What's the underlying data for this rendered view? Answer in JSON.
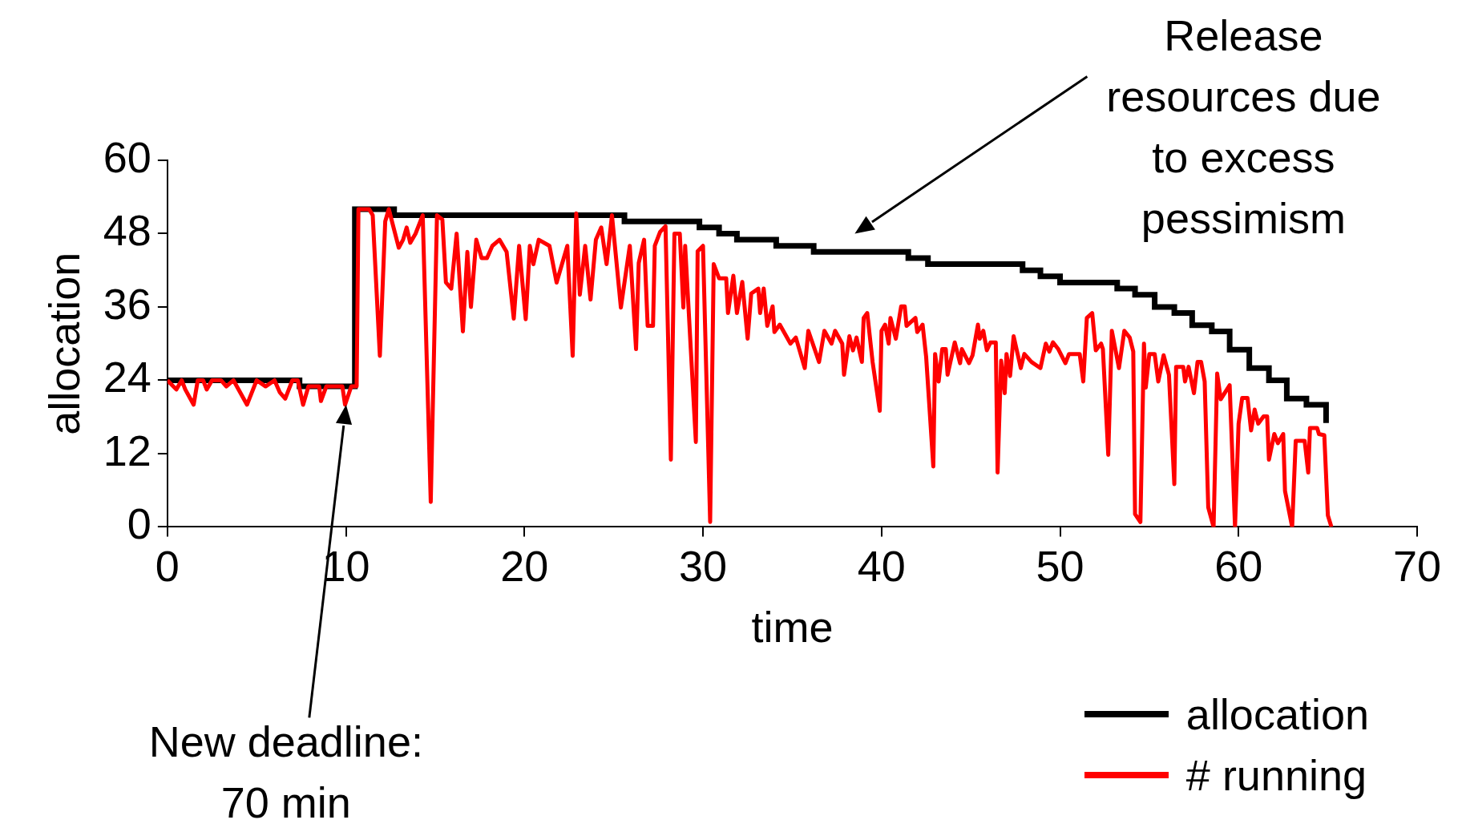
{
  "chart_data": {
    "type": "line",
    "xlabel": "time",
    "ylabel": "allocation",
    "xlim": [
      0,
      70
    ],
    "xticks": [
      0,
      10,
      20,
      30,
      40,
      50,
      60,
      70
    ],
    "ylim": [
      0,
      60
    ],
    "yticks": [
      0,
      12,
      24,
      36,
      48,
      60
    ],
    "grid": false,
    "legend": "bottom right",
    "marker": "none",
    "line_style": "solid",
    "annotations": [
      "Release resources due to excess pessimism",
      "New deadline: 70 min"
    ],
    "series": [
      {
        "name": "allocation",
        "color": "#000000",
        "type": "step",
        "x": [
          0,
          7.4,
          10.5,
          12.7,
          25.6,
          29.8,
          30.9,
          31.9,
          34.1,
          36.2,
          41.5,
          42.6,
          47.9,
          48.9,
          50,
          53.2,
          54.2,
          55.3,
          56.4,
          57.4,
          58.5,
          59.5,
          60.6,
          61.7,
          62.7,
          63.8,
          64.9
        ],
        "values": [
          24,
          23,
          52,
          51,
          50,
          49,
          48,
          47,
          46,
          45,
          44,
          43,
          42,
          41,
          40,
          39,
          38,
          36,
          35,
          33,
          32,
          29,
          26,
          24,
          21,
          20,
          17
        ]
      },
      {
        "name": "# running",
        "color": "#ff0000",
        "type": "line",
        "x": [
          0,
          0.5,
          0.8,
          1,
          1.47,
          1.7,
          2,
          2.2,
          2.5,
          3,
          3.3,
          3.7,
          4.46,
          5,
          5.5,
          6,
          6.3,
          6.6,
          7,
          7.3,
          7.6,
          7.9,
          8.5,
          8.6,
          8.9,
          9.8,
          9.95,
          10.3,
          10.6,
          10.7,
          11.3,
          11.5,
          11.9,
          12.2,
          12.4,
          12.96,
          13.2,
          13.4,
          13.6,
          13.9,
          14.3,
          14.75,
          15.1,
          15.4,
          15.6,
          15.9,
          16.2,
          16.55,
          16.8,
          17,
          17.3,
          17.6,
          17.9,
          18.2,
          18.6,
          19,
          19.4,
          19.7,
          20.07,
          20.3,
          20.5,
          20.8,
          21.4,
          21.8,
          22.4,
          22.7,
          22.9,
          23.1,
          23.4,
          23.7,
          24,
          24.3,
          24.6,
          24.9,
          25.4,
          25.9,
          26.25,
          26.4,
          26.7,
          26.9,
          27.2,
          27.3,
          27.6,
          27.9,
          28.2,
          28.4,
          28.7,
          28.9,
          29,
          29.6,
          29.7,
          30,
          30.4,
          30.6,
          30.9,
          31.3,
          31.4,
          31.7,
          31.9,
          32.2,
          32.5,
          32.7,
          33.1,
          33.2,
          33.4,
          33.6,
          33.9,
          34,
          34.3,
          34.9,
          35.2,
          35.7,
          35.9,
          36.5,
          36.8,
          37.2,
          37.4,
          37.8,
          37.9,
          38.2,
          38.4,
          38.6,
          38.9,
          39,
          39.2,
          39.5,
          39.9,
          40,
          40.2,
          40.4,
          40.5,
          40.8,
          41.1,
          41.3,
          41.4,
          41.9,
          42,
          42.3,
          42.5,
          42.9,
          43,
          43.2,
          43.4,
          43.6,
          43.7,
          44.1,
          44.4,
          44.5,
          44.9,
          45.1,
          45.4,
          45.5,
          45.7,
          45.9,
          46.1,
          46.4,
          46.5,
          46.7,
          46.9,
          47,
          47.2,
          47.4,
          47.8,
          48,
          48.4,
          48.9,
          49.2,
          49.4,
          49.6,
          49.9,
          50.3,
          50.5,
          51.1,
          51.3,
          51.5,
          51.8,
          52,
          52.3,
          52.4,
          52.7,
          52.9,
          53.3,
          53.6,
          53.9,
          54.1,
          54.2,
          54.5,
          54.7,
          54.8,
          55,
          55.3,
          55.5,
          55.8,
          56.1,
          56.4,
          56.5,
          56.9,
          57,
          57.2,
          57.5,
          57.7,
          57.9,
          58.1,
          58.3,
          58.6,
          58.8,
          59,
          59.5,
          59.8,
          60,
          60.2,
          60.5,
          60.7,
          60.9,
          61.1,
          61.4,
          61.6,
          61.7,
          62,
          62.2,
          62.5,
          62.6,
          63,
          63.2,
          63.7,
          63.9,
          64,
          64.4,
          64.5,
          64.8,
          65,
          65.2
        ],
        "values": [
          24,
          22.5,
          24,
          22.5,
          20,
          24,
          24,
          22.5,
          24,
          24,
          23,
          24,
          20,
          24,
          23,
          24,
          22,
          21,
          24,
          24,
          20,
          23,
          23,
          20.6,
          23,
          23,
          20,
          23,
          23,
          52,
          52,
          51,
          28,
          50,
          52,
          45.7,
          47,
          49,
          46.5,
          48,
          51,
          4.1,
          51,
          50.3,
          40,
          39,
          48,
          32,
          45,
          36,
          47,
          44,
          44,
          46,
          47,
          45,
          34.1,
          46,
          34,
          46,
          43,
          47,
          46,
          40,
          46,
          28,
          51.3,
          38,
          46,
          37.2,
          47,
          49,
          43,
          51,
          35.9,
          46,
          29.1,
          43.2,
          47,
          32.9,
          32.9,
          46,
          48.3,
          49.2,
          11,
          48,
          48,
          35.9,
          46,
          13.9,
          45.1,
          46,
          0.8,
          43,
          40.7,
          40.7,
          35,
          41.1,
          35,
          40.1,
          30.8,
          38.2,
          39,
          35,
          39,
          32.9,
          36.1,
          31.9,
          33.1,
          30,
          31,
          26,
          32.1,
          27,
          32.1,
          30,
          32.1,
          30,
          24.9,
          31.2,
          28.9,
          31,
          27,
          34.2,
          35,
          27,
          19,
          32.1,
          33.1,
          30,
          34.2,
          30.8,
          36.1,
          36.1,
          32.9,
          34.2,
          31.9,
          33.1,
          27.8,
          9.9,
          28.3,
          23.8,
          29.1,
          29.1,
          24.9,
          30.2,
          26.8,
          29.1,
          26.8,
          28.1,
          33.1,
          30.8,
          32.1,
          28.9,
          30.2,
          30.2,
          8.9,
          27.2,
          21.9,
          28.3,
          24.7,
          31.2,
          26,
          28.3,
          27,
          26,
          30,
          28.7,
          30.2,
          29.1,
          26.8,
          28.3,
          28.3,
          23.8,
          34.2,
          35,
          28.9,
          30,
          29.1,
          11.8,
          32.1,
          26,
          32.1,
          31,
          28.7,
          2.1,
          0.8,
          30,
          22.8,
          28.3,
          28.3,
          23.8,
          28.1,
          24.9,
          7,
          26.2,
          26.2,
          23.8,
          26.2,
          21.9,
          27,
          27,
          23.8,
          3.2,
          0,
          25.1,
          20.9,
          23.2,
          0,
          16.9,
          21.1,
          21.1,
          15.8,
          19.2,
          16.9,
          18.1,
          18.1,
          11,
          15.2,
          13.7,
          15.2,
          5.9,
          0,
          14.1,
          14.1,
          8.9,
          16.2,
          16.2,
          15.2,
          15,
          1.9,
          0
        ]
      }
    ]
  }
}
